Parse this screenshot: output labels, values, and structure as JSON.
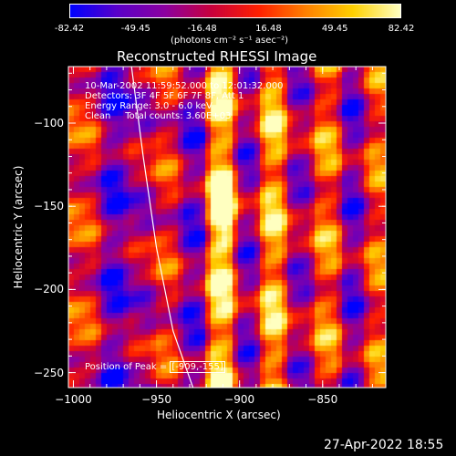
{
  "colorbar": {
    "ticks": [
      "-82.42",
      "-49.45",
      "-16.48",
      "16.48",
      "49.45",
      "82.42"
    ],
    "tick_values": [
      -82.42,
      -49.45,
      -16.48,
      16.48,
      49.45,
      82.42
    ],
    "range": [
      -82.42,
      82.42
    ],
    "units": "(photons cm⁻² s⁻¹ asec⁻²)",
    "colormap": [
      "#0000ff",
      "#5a00c8",
      "#8c00a0",
      "#c8003c",
      "#ff2000",
      "#ff8000",
      "#ffd000",
      "#ffffc0"
    ]
  },
  "chart_data": {
    "type": "heatmap",
    "title": "Reconstructed RHESSI Image",
    "xlabel": "Heliocentric X (arcsec)",
    "ylabel": "Heliocentric Y (arcsec)",
    "xlim": [
      -1003,
      -812
    ],
    "ylim": [
      -259,
      -66
    ],
    "x_ticks": [
      -1000,
      -950,
      -900,
      -850
    ],
    "x_tick_labels": [
      "−1000",
      "−950",
      "−900",
      "−850"
    ],
    "y_ticks": [
      -100,
      -150,
      -200,
      -250
    ],
    "y_tick_labels": [
      "−100",
      "−150",
      "−200",
      "−250"
    ],
    "peak": [
      -909,
      -155
    ],
    "limb_curve": {
      "x": [
        -965,
        -958,
        -950,
        -940,
        -928
      ],
      "y": [
        -66,
        -120,
        -175,
        -225,
        -259
      ]
    },
    "stripe_centers_x": [
      -990,
      -977,
      -960,
      -943,
      -928,
      -911,
      -895,
      -880,
      -864,
      -847,
      -831,
      -818
    ],
    "stripe_levels": [
      0.55,
      0.15,
      0.35,
      0.55,
      0.2,
      0.9,
      0.25,
      0.85,
      0.3,
      0.7,
      0.2,
      0.65
    ]
  },
  "annotations": {
    "time": "10-Mar-2002 11:59:52.000 to 12:01:32.000",
    "detectors": "Detectors: 3F 4F 5F 6F 7F 8F, Att 1",
    "energy": "Energy Range: 3.0 - 6.0 keV",
    "clean": "Clean     Total counts: 3.60E+03",
    "peak_label": "Position of Peak = ",
    "peak_value": "[-909,-155]"
  },
  "footer": {
    "timestamp": "27-Apr-2022 18:55"
  }
}
